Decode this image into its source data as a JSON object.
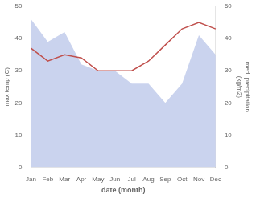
{
  "chart_data": {
    "type": "line",
    "categories": [
      "Jan",
      "Feb",
      "Mar",
      "Apr",
      "May",
      "Jun",
      "Jul",
      "Aug",
      "Sep",
      "Oct",
      "Nov",
      "Dec"
    ],
    "series": [
      {
        "type": "area",
        "color": "#b8c4e8",
        "axis": "y2",
        "values": [
          46,
          39,
          42,
          32,
          30,
          30,
          26,
          26,
          20,
          26,
          41,
          35
        ]
      },
      {
        "type": "line",
        "color": "#c0504d",
        "values": [
          37,
          33,
          35,
          34,
          30,
          30,
          30,
          33,
          38,
          43,
          45,
          43
        ]
      }
    ],
    "xlabel": "date (month)",
    "ylabel": "max temp (C)",
    "y2label": "med. precipitation\n(kg/m2)",
    "ylim": [
      0,
      50
    ],
    "yticks": [
      0,
      10,
      20,
      30,
      40,
      50
    ],
    "y2lim": [
      0,
      50
    ],
    "y2ticks": [
      0,
      10,
      20,
      30,
      40,
      50
    ],
    "grid": false
  }
}
